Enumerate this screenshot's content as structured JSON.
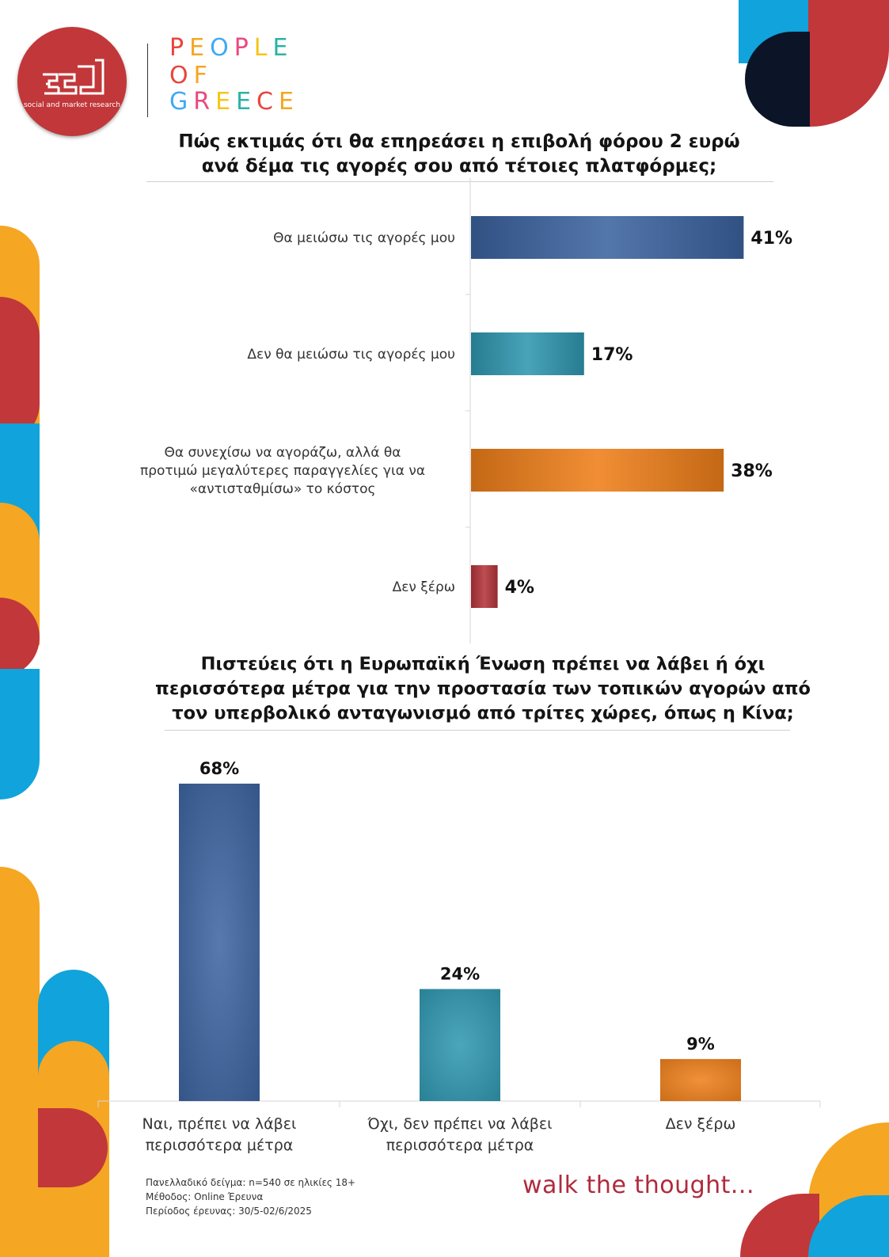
{
  "logo": {
    "mark": "ged",
    "tagline": "social and market research",
    "brand_lines": [
      "PEOPLE",
      "OF",
      "GREECE"
    ],
    "brand_colors": [
      "#e8453c",
      "#f5a623",
      "#3fa9f5",
      "#e84a7f",
      "#f5c518",
      "#2bb3a3"
    ]
  },
  "colors": {
    "red": "#c1373a",
    "orange": "#f5a623",
    "blue": "#11a3db",
    "navy": "#0c1428",
    "bar_blue": "#3c63a0",
    "bar_teal": "#2f97b0",
    "bar_orange": "#ef7f1a",
    "bar_red": "#b4353a"
  },
  "chart_data": [
    {
      "type": "bar",
      "orientation": "horizontal",
      "title": "Πώς εκτιμάς ότι θα επηρεάσει η επιβολή φόρου 2 ευρώ\nανά δέμα τις αγορές σου από τέτοιες πλατφόρμες;",
      "categories": [
        "Θα μειώσω τις αγορές μου",
        "Δεν θα μειώσω τις αγορές μου",
        "Θα συνεχίσω να αγοράζω, αλλά θα\nπροτιμώ μεγαλύτερες παραγγελίες για να\n«αντισταθμίσω» το κόστος",
        "Δεν ξέρω"
      ],
      "values": [
        41,
        17,
        38,
        4
      ],
      "value_labels": [
        "41%",
        "17%",
        "38%",
        "4%"
      ],
      "colors": [
        "#3c63a0",
        "#2f97b0",
        "#ef7f1a",
        "#b4353a"
      ],
      "xlim": [
        0,
        100
      ],
      "grid": false,
      "legend": "none"
    },
    {
      "type": "bar",
      "orientation": "vertical",
      "title": "Πιστεύεις ότι η Ευρωπαϊκή Ένωση πρέπει να λάβει ή όχι\nπερισσότερα μέτρα για την προστασία των τοπικών αγορών από\nτον υπερβολικό ανταγωνισμό από τρίτες χώρες, όπως η Κίνα;",
      "categories": [
        "Ναι, πρέπει να λάβει\nπερισσότερα μέτρα",
        "Όχι, δεν πρέπει να λάβει\nπερισσότερα μέτρα",
        "Δεν ξέρω"
      ],
      "values": [
        68,
        24,
        9
      ],
      "value_labels": [
        "68%",
        "24%",
        "9%"
      ],
      "colors": [
        "#3c63a0",
        "#2f97b0",
        "#ef7f1a"
      ],
      "ylim": [
        0,
        68
      ],
      "grid": false,
      "legend": "none"
    }
  ],
  "footer": {
    "notes": [
      "Πανελλαδικό δείγμα: n=540 σε ηλικίες 18+",
      "Μέθοδος: Online Έρευνα",
      "Περίοδος έρευνας: 30/5-02/6/2025"
    ],
    "slogan": "walk the thought..."
  }
}
